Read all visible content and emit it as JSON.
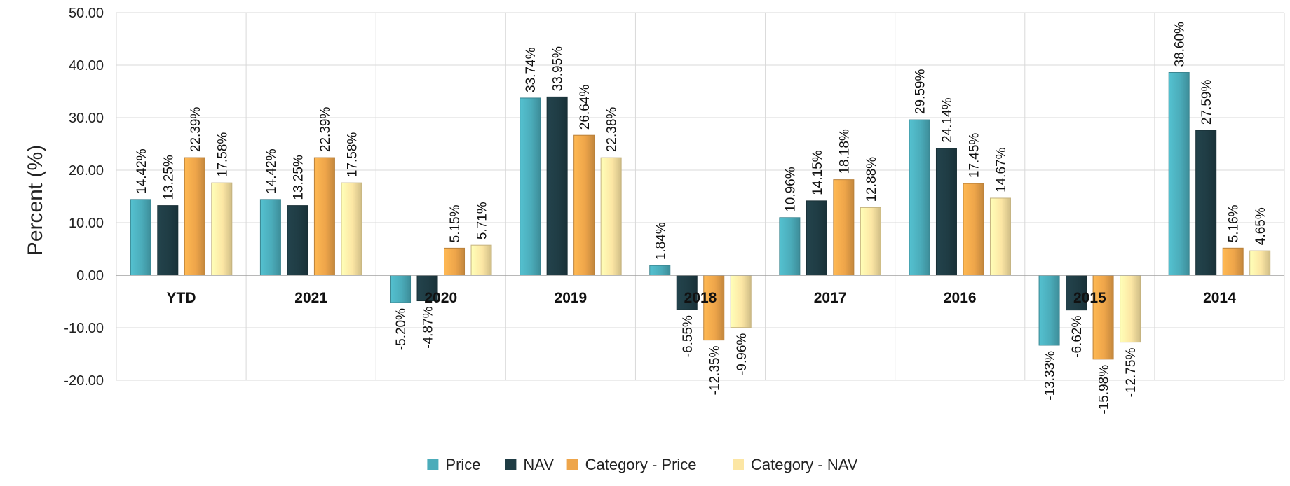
{
  "chart_data": {
    "type": "bar",
    "ylabel": "Percent (%)",
    "ylim": [
      -20,
      50
    ],
    "yticks": [
      50,
      40,
      30,
      20,
      10,
      0,
      -10,
      -20
    ],
    "ytick_labels": [
      "50.00",
      "40.00",
      "30.00",
      "20.00",
      "10.00",
      "0.00",
      "-10.00",
      "-20.00"
    ],
    "grid": true,
    "legend_position": "bottom-center",
    "categories": [
      "YTD",
      "2021",
      "2020",
      "2019",
      "2018",
      "2017",
      "2016",
      "2015",
      "2014"
    ],
    "series": [
      {
        "name": "Price",
        "color": "#4bacba",
        "values": [
          14.42,
          14.42,
          -5.2,
          33.74,
          1.84,
          10.96,
          29.59,
          -13.33,
          38.6
        ],
        "labels": [
          "14.42%",
          "14.42%",
          "-5.20%",
          "33.74%",
          "1.84%",
          "10.96%",
          "29.59%",
          "-13.33%",
          "38.60%"
        ]
      },
      {
        "name": "NAV",
        "color": "#1f3c44",
        "values": [
          13.25,
          13.25,
          -4.87,
          33.95,
          -6.55,
          14.15,
          24.14,
          -6.62,
          27.59
        ],
        "labels": [
          "13.25%",
          "13.25%",
          "-4.87%",
          "33.95%",
          "-6.55%",
          "14.15%",
          "24.14%",
          "-6.62%",
          "27.59%"
        ]
      },
      {
        "name": "Category - Price",
        "color": "#eea54a",
        "values": [
          22.39,
          22.39,
          5.15,
          26.64,
          -12.35,
          18.18,
          17.45,
          -15.98,
          5.16
        ],
        "labels": [
          "22.39%",
          "22.39%",
          "5.15%",
          "26.64%",
          "-12.35%",
          "18.18%",
          "17.45%",
          "-15.98%",
          "5.16%"
        ]
      },
      {
        "name": "Category - NAV",
        "color": "#fce6a4",
        "values": [
          17.58,
          17.58,
          5.71,
          22.38,
          -9.96,
          12.88,
          14.67,
          -12.75,
          4.65
        ],
        "labels": [
          "17.58%",
          "17.58%",
          "5.71%",
          "22.38%",
          "-9.96%",
          "12.88%",
          "14.67%",
          "-12.75%",
          "4.65%"
        ]
      }
    ]
  }
}
